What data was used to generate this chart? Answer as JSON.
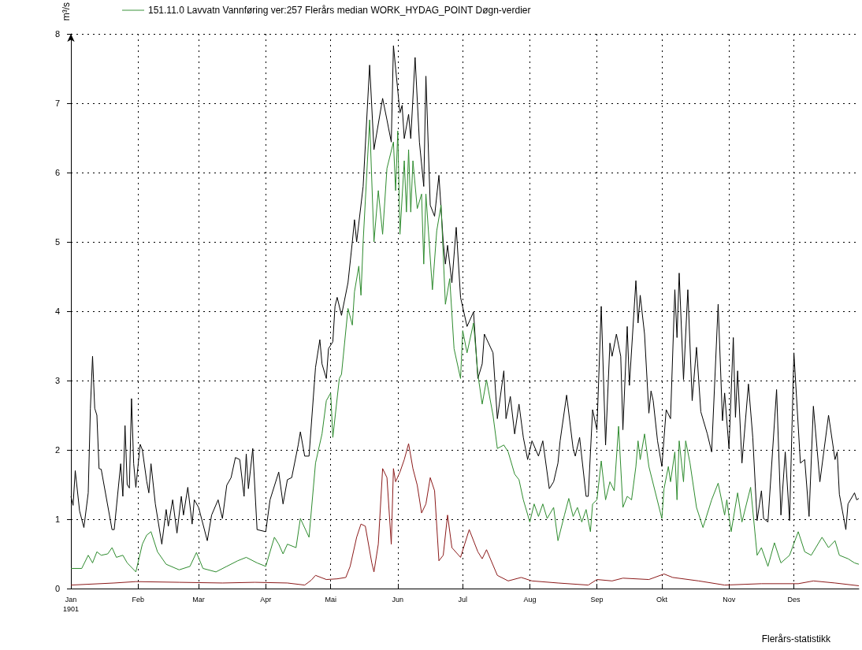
{
  "chart_data": {
    "type": "line",
    "ylabel": "m³/s",
    "xlim": [
      "1901-01-01",
      "1901-12-31"
    ],
    "xticks": [
      {
        "value": "1901-01-01",
        "label": "Jan\n1901"
      },
      {
        "value": "1901-02-01",
        "label": "Feb"
      },
      {
        "value": "1901-03-01",
        "label": "Mar"
      },
      {
        "value": "1901-04-01",
        "label": "Apr"
      },
      {
        "value": "1901-05-01",
        "label": "Mai"
      },
      {
        "value": "1901-06-01",
        "label": "Jun"
      },
      {
        "value": "1901-07-01",
        "label": "Jul"
      },
      {
        "value": "1901-08-01",
        "label": "Aug"
      },
      {
        "value": "1901-09-01",
        "label": "Sep"
      },
      {
        "value": "1901-10-01",
        "label": "Okt"
      },
      {
        "value": "1901-11-01",
        "label": "Nov"
      },
      {
        "value": "1901-12-01",
        "label": "Des"
      }
    ],
    "ylim": [
      0,
      8
    ],
    "yticks": [
      0,
      1,
      2,
      3,
      4,
      5,
      6,
      7,
      8
    ],
    "grid": true,
    "legend": "top left",
    "marker": "none",
    "line_style": "solid",
    "annotations": [
      "Flerårs-statistikk"
    ],
    "series": [
      {
        "color": "#000000",
        "x": [
          "1901-01-01",
          "1901-01-02",
          "1901-01-03",
          "1901-01-05",
          "1901-01-07",
          "1901-01-09",
          "1901-01-10",
          "1901-01-11",
          "1901-01-12",
          "1901-01-13",
          "1901-01-14",
          "1901-01-15",
          "1901-01-20",
          "1901-01-21",
          "1901-01-24",
          "1901-01-25",
          "1901-01-26",
          "1901-01-27",
          "1901-01-28",
          "1901-01-29",
          "1901-01-30",
          "1901-01-31",
          "1901-02-02",
          "1901-02-03",
          "1901-02-05",
          "1901-02-06",
          "1901-02-07",
          "1901-02-09",
          "1901-02-12",
          "1901-02-14",
          "1901-02-15",
          "1901-02-17",
          "1901-02-19",
          "1901-02-21",
          "1901-02-22",
          "1901-02-24",
          "1901-02-26",
          "1901-02-27",
          "1901-03-01",
          "1901-03-05",
          "1901-03-07",
          "1901-03-10",
          "1901-03-12",
          "1901-03-14",
          "1901-03-16",
          "1901-03-18",
          "1901-03-20",
          "1901-03-22",
          "1901-03-23",
          "1901-03-24",
          "1901-03-26",
          "1901-03-28",
          "1901-04-01",
          "1901-04-03",
          "1901-04-07",
          "1901-04-09",
          "1901-04-11",
          "1901-04-13",
          "1901-04-16",
          "1901-04-17",
          "1901-04-19",
          "1901-04-21",
          "1901-04-24",
          "1901-04-26",
          "1901-04-27",
          "1901-04-29",
          "1901-04-30",
          "1901-05-02",
          "1901-05-03",
          "1901-05-04",
          "1901-05-06",
          "1901-05-09",
          "1901-05-11",
          "1901-05-12",
          "1901-05-13",
          "1901-05-16",
          "1901-05-19",
          "1901-05-21",
          "1901-05-25",
          "1901-05-27",
          "1901-05-29",
          "1901-05-30",
          "1901-06-02",
          "1901-06-03",
          "1901-06-04",
          "1901-06-06",
          "1901-06-07",
          "1901-06-09",
          "1901-06-11",
          "1901-06-13",
          "1901-06-14",
          "1901-06-16",
          "1901-06-18",
          "1901-06-20",
          "1901-06-22",
          "1901-06-23",
          "1901-06-24",
          "1901-06-26",
          "1901-06-28",
          "1901-06-30",
          "1901-07-03",
          "1901-07-06",
          "1901-07-08",
          "1901-07-10",
          "1901-07-11",
          "1901-07-15",
          "1901-07-17",
          "1901-07-20",
          "1901-07-21",
          "1901-07-23",
          "1901-07-25",
          "1901-07-27",
          "1901-07-29",
          "1901-07-31",
          "1901-08-02",
          "1901-08-05",
          "1901-08-07",
          "1901-08-10",
          "1901-08-12",
          "1901-08-14",
          "1901-08-15",
          "1901-08-18",
          "1901-08-21",
          "1901-08-22",
          "1901-08-24",
          "1901-08-27",
          "1901-08-28",
          "1901-08-30",
          "1901-09-01",
          "1901-09-03",
          "1901-09-05",
          "1901-09-07",
          "1901-09-08",
          "1901-09-10",
          "1901-09-12",
          "1901-09-13",
          "1901-09-15",
          "1901-09-16",
          "1901-09-19",
          "1901-09-20",
          "1901-09-21",
          "1901-09-23",
          "1901-09-25",
          "1901-09-26",
          "1901-09-27",
          "1901-09-29",
          "1901-10-01",
          "1901-10-03",
          "1901-10-05",
          "1901-10-07",
          "1901-10-08",
          "1901-10-09",
          "1901-10-11",
          "1901-10-13",
          "1901-10-15",
          "1901-10-17",
          "1901-10-19",
          "1901-10-22",
          "1901-10-24",
          "1901-10-27",
          "1901-10-29",
          "1901-10-30",
          "1901-11-01",
          "1901-11-03",
          "1901-11-04",
          "1901-11-05",
          "1901-11-07",
          "1901-11-10",
          "1901-11-12",
          "1901-11-14",
          "1901-11-16",
          "1901-11-17",
          "1901-11-19",
          "1901-11-23",
          "1901-11-25",
          "1901-11-27",
          "1901-11-29",
          "1901-12-01",
          "1901-12-04",
          "1901-12-06",
          "1901-12-08",
          "1901-12-10",
          "1901-12-13",
          "1901-12-17",
          "1901-12-20",
          "1901-12-21",
          "1901-12-22",
          "1901-12-25",
          "1901-12-26",
          "1901-12-29",
          "1901-12-30",
          "1901-12-31"
        ],
        "values": [
          1.33,
          1.2,
          1.7,
          1.12,
          0.88,
          1.38,
          2.6,
          3.35,
          2.6,
          2.5,
          1.73,
          1.72,
          0.85,
          0.85,
          1.8,
          1.33,
          2.35,
          1.5,
          1.45,
          2.74,
          1.8,
          1.46,
          2.08,
          2.0,
          1.55,
          1.38,
          1.8,
          1.22,
          0.64,
          1.14,
          0.9,
          1.28,
          0.8,
          1.33,
          1.06,
          1.46,
          0.93,
          1.28,
          1.17,
          0.69,
          1.06,
          1.28,
          1.01,
          1.49,
          1.6,
          1.89,
          1.86,
          1.33,
          1.94,
          1.44,
          2.02,
          0.85,
          0.82,
          1.28,
          1.68,
          1.22,
          1.57,
          1.6,
          2.07,
          2.26,
          1.91,
          1.91,
          3.19,
          3.59,
          3.24,
          3.03,
          3.46,
          3.56,
          4.07,
          4.2,
          3.94,
          4.41,
          5.0,
          5.32,
          5.0,
          5.8,
          7.55,
          6.33,
          7.07,
          6.76,
          6.44,
          7.83,
          6.86,
          6.97,
          6.49,
          6.84,
          6.49,
          7.66,
          6.44,
          5.8,
          7.39,
          5.53,
          5.37,
          5.96,
          5.0,
          4.68,
          4.95,
          4.41,
          5.21,
          4.2,
          3.78,
          3.99,
          3.03,
          3.24,
          3.67,
          3.4,
          2.45,
          3.14,
          2.45,
          2.77,
          2.23,
          2.66,
          2.18,
          1.86,
          2.13,
          1.91,
          2.13,
          1.44,
          1.54,
          1.81,
          2.13,
          2.79,
          2.02,
          1.91,
          2.18,
          1.33,
          1.33,
          2.58,
          2.29,
          4.07,
          2.07,
          3.54,
          3.35,
          3.67,
          3.35,
          2.29,
          3.78,
          2.93,
          4.44,
          3.83,
          4.23,
          3.67,
          2.53,
          2.85,
          2.71,
          2.13,
          1.76,
          2.58,
          2.45,
          4.31,
          3.62,
          4.55,
          3.01,
          4.31,
          2.71,
          3.48,
          2.55,
          2.23,
          1.97,
          4.1,
          2.42,
          2.82,
          2.02,
          3.62,
          2.47,
          3.14,
          1.81,
          2.95,
          2.18,
          0.98,
          1.41,
          1.01,
          0.96,
          2.87,
          1.06,
          1.97,
          0.98,
          3.4,
          1.81,
          1.86,
          1.04,
          2.63,
          1.54,
          2.5,
          1.86,
          1.97,
          1.36,
          0.85,
          1.22,
          1.38,
          1.28,
          1.3
        ]
      },
      {
        "name": "151.11.0 Lavvatn Vannføring ver:257 Flerårs median WORK_HYDAG_POINT Døgn-verdier",
        "color": "#2e8b2e",
        "x": [
          "1901-01-01",
          "1901-01-06",
          "1901-01-09",
          "1901-01-11",
          "1901-01-13",
          "1901-01-15",
          "1901-01-18",
          "1901-01-20",
          "1901-01-22",
          "1901-01-25",
          "1901-01-27",
          "1901-01-31",
          "1901-02-03",
          "1901-02-05",
          "1901-02-07",
          "1901-02-10",
          "1901-02-14",
          "1901-02-20",
          "1901-02-25",
          "1901-02-28",
          "1901-03-03",
          "1901-03-09",
          "1901-03-14",
          "1901-03-19",
          "1901-03-23",
          "1901-03-28",
          "1901-04-01",
          "1901-04-05",
          "1901-04-07",
          "1901-04-09",
          "1901-04-11",
          "1901-04-15",
          "1901-04-17",
          "1901-04-21",
          "1901-04-24",
          "1901-04-27",
          "1901-04-29",
          "1901-05-01",
          "1901-05-02",
          "1901-05-05",
          "1901-05-06",
          "1901-05-09",
          "1901-05-11",
          "1901-05-12",
          "1901-05-14",
          "1901-05-15",
          "1901-05-16",
          "1901-05-19",
          "1901-05-21",
          "1901-05-23",
          "1901-05-25",
          "1901-05-27",
          "1901-05-30",
          "1901-05-31",
          "1901-06-01",
          "1901-06-02",
          "1901-06-04",
          "1901-06-05",
          "1901-06-06",
          "1901-06-07",
          "1901-06-08",
          "1901-06-10",
          "1901-06-12",
          "1901-06-13",
          "1901-06-14",
          "1901-06-17",
          "1901-06-19",
          "1901-06-21",
          "1901-06-23",
          "1901-06-25",
          "1901-06-27",
          "1901-06-30",
          "1901-07-01",
          "1901-07-03",
          "1901-07-06",
          "1901-07-08",
          "1901-07-10",
          "1901-07-12",
          "1901-07-15",
          "1901-07-17",
          "1901-07-20",
          "1901-07-22",
          "1901-07-25",
          "1901-07-27",
          "1901-07-29",
          "1901-08-01",
          "1901-08-03",
          "1901-08-05",
          "1901-08-07",
          "1901-08-09",
          "1901-08-12",
          "1901-08-14",
          "1901-08-17",
          "1901-08-19",
          "1901-08-21",
          "1901-08-23",
          "1901-08-25",
          "1901-08-27",
          "1901-08-29",
          "1901-08-30",
          "1901-09-01",
          "1901-09-03",
          "1901-09-05",
          "1901-09-07",
          "1901-09-09",
          "1901-09-11",
          "1901-09-13",
          "1901-09-15",
          "1901-09-17",
          "1901-09-19",
          "1901-09-20",
          "1901-09-21",
          "1901-09-23",
          "1901-09-25",
          "1901-10-01",
          "1901-10-02",
          "1901-10-04",
          "1901-10-05",
          "1901-10-07",
          "1901-10-08",
          "1901-10-09",
          "1901-10-11",
          "1901-10-12",
          "1901-10-14",
          "1901-10-17",
          "1901-10-20",
          "1901-10-24",
          "1901-10-27",
          "1901-10-30",
          "1901-10-31",
          "1901-11-02",
          "1901-11-05",
          "1901-11-07",
          "1901-11-11",
          "1901-11-14",
          "1901-11-16",
          "1901-11-19",
          "1901-11-22",
          "1901-11-25",
          "1901-11-29",
          "1901-12-03",
          "1901-12-06",
          "1901-12-09",
          "1901-12-14",
          "1901-12-17",
          "1901-12-20",
          "1901-12-22",
          "1901-12-26",
          "1901-12-29",
          "1901-12-31"
        ],
        "values": [
          0.29,
          0.29,
          0.48,
          0.37,
          0.53,
          0.48,
          0.5,
          0.59,
          0.45,
          0.48,
          0.37,
          0.24,
          0.64,
          0.77,
          0.82,
          0.53,
          0.35,
          0.27,
          0.32,
          0.52,
          0.29,
          0.24,
          0.32,
          0.4,
          0.45,
          0.37,
          0.32,
          0.74,
          0.64,
          0.5,
          0.64,
          0.59,
          1.01,
          0.74,
          1.81,
          2.23,
          2.71,
          2.82,
          2.18,
          3.03,
          3.09,
          4.04,
          3.8,
          4.28,
          4.65,
          4.23,
          5.0,
          6.76,
          5.0,
          5.74,
          5.11,
          6.06,
          6.44,
          5.74,
          6.6,
          5.11,
          6.17,
          5.43,
          6.33,
          5.43,
          6.17,
          5.48,
          5.69,
          4.68,
          5.69,
          4.31,
          5.16,
          5.53,
          4.1,
          4.47,
          3.46,
          3.03,
          3.72,
          3.4,
          3.83,
          3.09,
          2.66,
          3.01,
          2.5,
          2.02,
          2.07,
          1.97,
          1.65,
          1.57,
          1.28,
          0.96,
          1.22,
          1.04,
          1.22,
          1.01,
          1.17,
          0.69,
          1.06,
          1.3,
          1.04,
          1.17,
          0.96,
          1.14,
          0.82,
          1.22,
          1.28,
          1.84,
          1.28,
          1.54,
          1.41,
          2.34,
          1.17,
          1.33,
          1.28,
          1.76,
          2.13,
          1.86,
          2.23,
          1.76,
          1.01,
          1.44,
          1.76,
          1.54,
          1.97,
          1.28,
          2.13,
          1.54,
          2.13,
          1.81,
          1.17,
          0.88,
          1.28,
          1.52,
          1.06,
          1.28,
          0.82,
          1.38,
          0.96,
          1.46,
          0.48,
          0.59,
          0.32,
          0.66,
          0.37,
          0.48,
          0.82,
          0.53,
          0.48,
          0.74,
          0.59,
          0.69,
          0.48,
          0.43,
          0.37,
          0.35
        ]
      },
      {
        "color": "#8b1a1a",
        "x": [
          "1901-01-01",
          "1901-01-21",
          "1901-01-31",
          "1901-02-20",
          "1901-03-12",
          "1901-03-27",
          "1901-04-11",
          "1901-04-19",
          "1901-04-22",
          "1901-04-24",
          "1901-04-29",
          "1901-05-04",
          "1901-05-08",
          "1901-05-10",
          "1901-05-13",
          "1901-05-15",
          "1901-05-17",
          "1901-05-20",
          "1901-05-21",
          "1901-05-23",
          "1901-05-25",
          "1901-05-27",
          "1901-05-29",
          "1901-05-30",
          "1901-05-31",
          "1901-06-02",
          "1901-06-04",
          "1901-06-06",
          "1901-06-08",
          "1901-06-10",
          "1901-06-12",
          "1901-06-14",
          "1901-06-16",
          "1901-06-18",
          "1901-06-20",
          "1901-06-22",
          "1901-06-24",
          "1901-06-26",
          "1901-06-30",
          "1901-07-04",
          "1901-07-08",
          "1901-07-10",
          "1901-07-12",
          "1901-07-17",
          "1901-07-22",
          "1901-07-28",
          "1901-08-02",
          "1901-08-14",
          "1901-08-28",
          "1901-09-01",
          "1901-09-08",
          "1901-09-13",
          "1901-09-25",
          "1901-10-02",
          "1901-10-06",
          "1901-10-18",
          "1901-10-30",
          "1901-11-16",
          "1901-12-03",
          "1901-12-10",
          "1901-12-20",
          "1901-12-31"
        ],
        "values": [
          0.05,
          0.08,
          0.1,
          0.09,
          0.08,
          0.09,
          0.08,
          0.05,
          0.12,
          0.19,
          0.13,
          0.14,
          0.16,
          0.32,
          0.74,
          0.93,
          0.9,
          0.37,
          0.24,
          0.64,
          1.73,
          1.6,
          0.64,
          1.73,
          1.54,
          1.68,
          1.86,
          2.09,
          1.73,
          1.49,
          1.09,
          1.22,
          1.6,
          1.41,
          0.4,
          0.48,
          1.06,
          0.59,
          0.45,
          0.85,
          0.53,
          0.43,
          0.56,
          0.19,
          0.11,
          0.16,
          0.11,
          0.08,
          0.05,
          0.13,
          0.11,
          0.15,
          0.13,
          0.21,
          0.16,
          0.11,
          0.05,
          0.07,
          0.07,
          0.11,
          0.08,
          0.04
        ]
      }
    ]
  }
}
